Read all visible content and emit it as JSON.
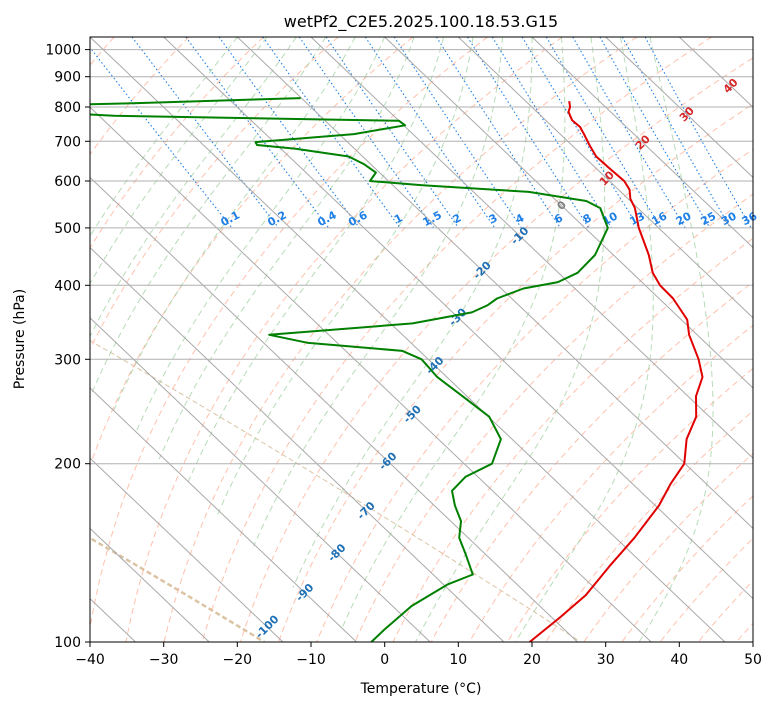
{
  "chart_data": {
    "type": "line",
    "subtype": "skew-T log-P diagram",
    "title": "wetPf2_C2E5.2025.100.18.53.G15",
    "xlabel": "Temperature (°C)",
    "ylabel": "Pressure (hPa)",
    "xlim": [
      -40,
      50
    ],
    "ylim": [
      1050,
      100
    ],
    "y_scale": "log",
    "x_ticks": [
      "−40",
      "−30",
      "−20",
      "−10",
      "0",
      "10",
      "20",
      "30",
      "40",
      "50"
    ],
    "y_ticks": [
      "100",
      "200",
      "300",
      "400",
      "500",
      "600",
      "700",
      "800",
      "900",
      "1000"
    ],
    "grid": true,
    "colors": {
      "temperature": "#e00000",
      "dewpoint": "#008000",
      "isotherm": "#a9a9a9",
      "dry_adiabat": "#ff9f80",
      "moist_adiabat": "#99cc99",
      "mixing_ratio": "#1e7fe6",
      "adiabat_label_blue": "#1f6fb5",
      "adiabat_label_red": "#d62728",
      "adiabat_label_gray": "#808080",
      "background_curve": "#d2b48c"
    },
    "adiabat_labels_blue": [
      "-100",
      "-90",
      "-80",
      "-70",
      "-60",
      "-50",
      "-40",
      "-30",
      "-20",
      "-10"
    ],
    "adiabat_labels_gray": [
      "0"
    ],
    "adiabat_labels_red": [
      "10",
      "20",
      "30",
      "40"
    ],
    "mixing_ratio_labels": [
      "0.1",
      "0.2",
      "0.4",
      "0.6",
      "1",
      "1.5",
      "2",
      "3",
      "4",
      "6",
      "8",
      "10",
      "13",
      "16",
      "20",
      "25",
      "30",
      "36"
    ],
    "series": [
      {
        "name": "",
        "color": "#e00000",
        "points": [
          [
            818,
            15.9
          ],
          [
            800,
            15.2
          ],
          [
            785,
            14.3
          ],
          [
            760,
            13.6
          ],
          [
            740,
            13.7
          ],
          [
            715,
            13.1
          ],
          [
            690,
            12.4
          ],
          [
            660,
            11.7
          ],
          [
            630,
            11.8
          ],
          [
            600,
            12.0
          ],
          [
            580,
            11.5
          ],
          [
            560,
            10.3
          ],
          [
            540,
            9.6
          ],
          [
            500,
            7.3
          ],
          [
            450,
            4.8
          ],
          [
            420,
            2.8
          ],
          [
            400,
            2.0
          ],
          [
            380,
            1.9
          ],
          [
            350,
            0.8
          ],
          [
            330,
            -1.1
          ],
          [
            300,
            -3.3
          ],
          [
            280,
            -5.3
          ],
          [
            260,
            -8.9
          ],
          [
            240,
            -11.8
          ],
          [
            220,
            -16.3
          ],
          [
            200,
            -20.1
          ],
          [
            185,
            -24.8
          ],
          [
            170,
            -29.5
          ],
          [
            150,
            -37.4
          ],
          [
            135,
            -44.5
          ],
          [
            120,
            -52.2
          ],
          [
            110,
            -58.9
          ],
          [
            100,
            -66.5
          ]
        ]
      },
      {
        "name": "",
        "color": "#008000",
        "points": [
          [
            828,
            -20.1
          ],
          [
            812,
            -43.0
          ],
          [
            798,
            -68.0
          ],
          [
            773,
            -48.0
          ],
          [
            758,
            -10.0
          ],
          [
            745,
            -9.8
          ],
          [
            720,
            -18.0
          ],
          [
            698,
            -32.5
          ],
          [
            690,
            -32.7
          ],
          [
            680,
            -28.0
          ],
          [
            660,
            -21.9
          ],
          [
            640,
            -20.9
          ],
          [
            620,
            -20.5
          ],
          [
            600,
            -22.5
          ],
          [
            590,
            -16.0
          ],
          [
            575,
            -2.5
          ],
          [
            555,
            4.0
          ],
          [
            540,
            4.9
          ],
          [
            500,
            3.1
          ],
          [
            450,
            -2.5
          ],
          [
            420,
            -7.4
          ],
          [
            405,
            -11.4
          ],
          [
            395,
            -17.0
          ],
          [
            380,
            -22.0
          ],
          [
            370,
            -24.3
          ],
          [
            360,
            -27.4
          ],
          [
            345,
            -37.0
          ],
          [
            330,
            -58.1
          ],
          [
            320,
            -54.1
          ],
          [
            310,
            -42.3
          ],
          [
            300,
            -40.9
          ],
          [
            280,
            -41.3
          ],
          [
            260,
            -40.6
          ],
          [
            240,
            -39.9
          ],
          [
            220,
            -41.5
          ],
          [
            200,
            -46.2
          ],
          [
            190,
            -51.7
          ],
          [
            180,
            -55.5
          ],
          [
            170,
            -57.2
          ],
          [
            160,
            -58.6
          ],
          [
            150,
            -61.2
          ],
          [
            140,
            -62.8
          ],
          [
            130,
            -64.6
          ],
          [
            125,
            -69.5
          ],
          [
            115,
            -77.4
          ],
          [
            105,
            -84.4
          ],
          [
            100,
            -88.0
          ]
        ]
      }
    ]
  }
}
